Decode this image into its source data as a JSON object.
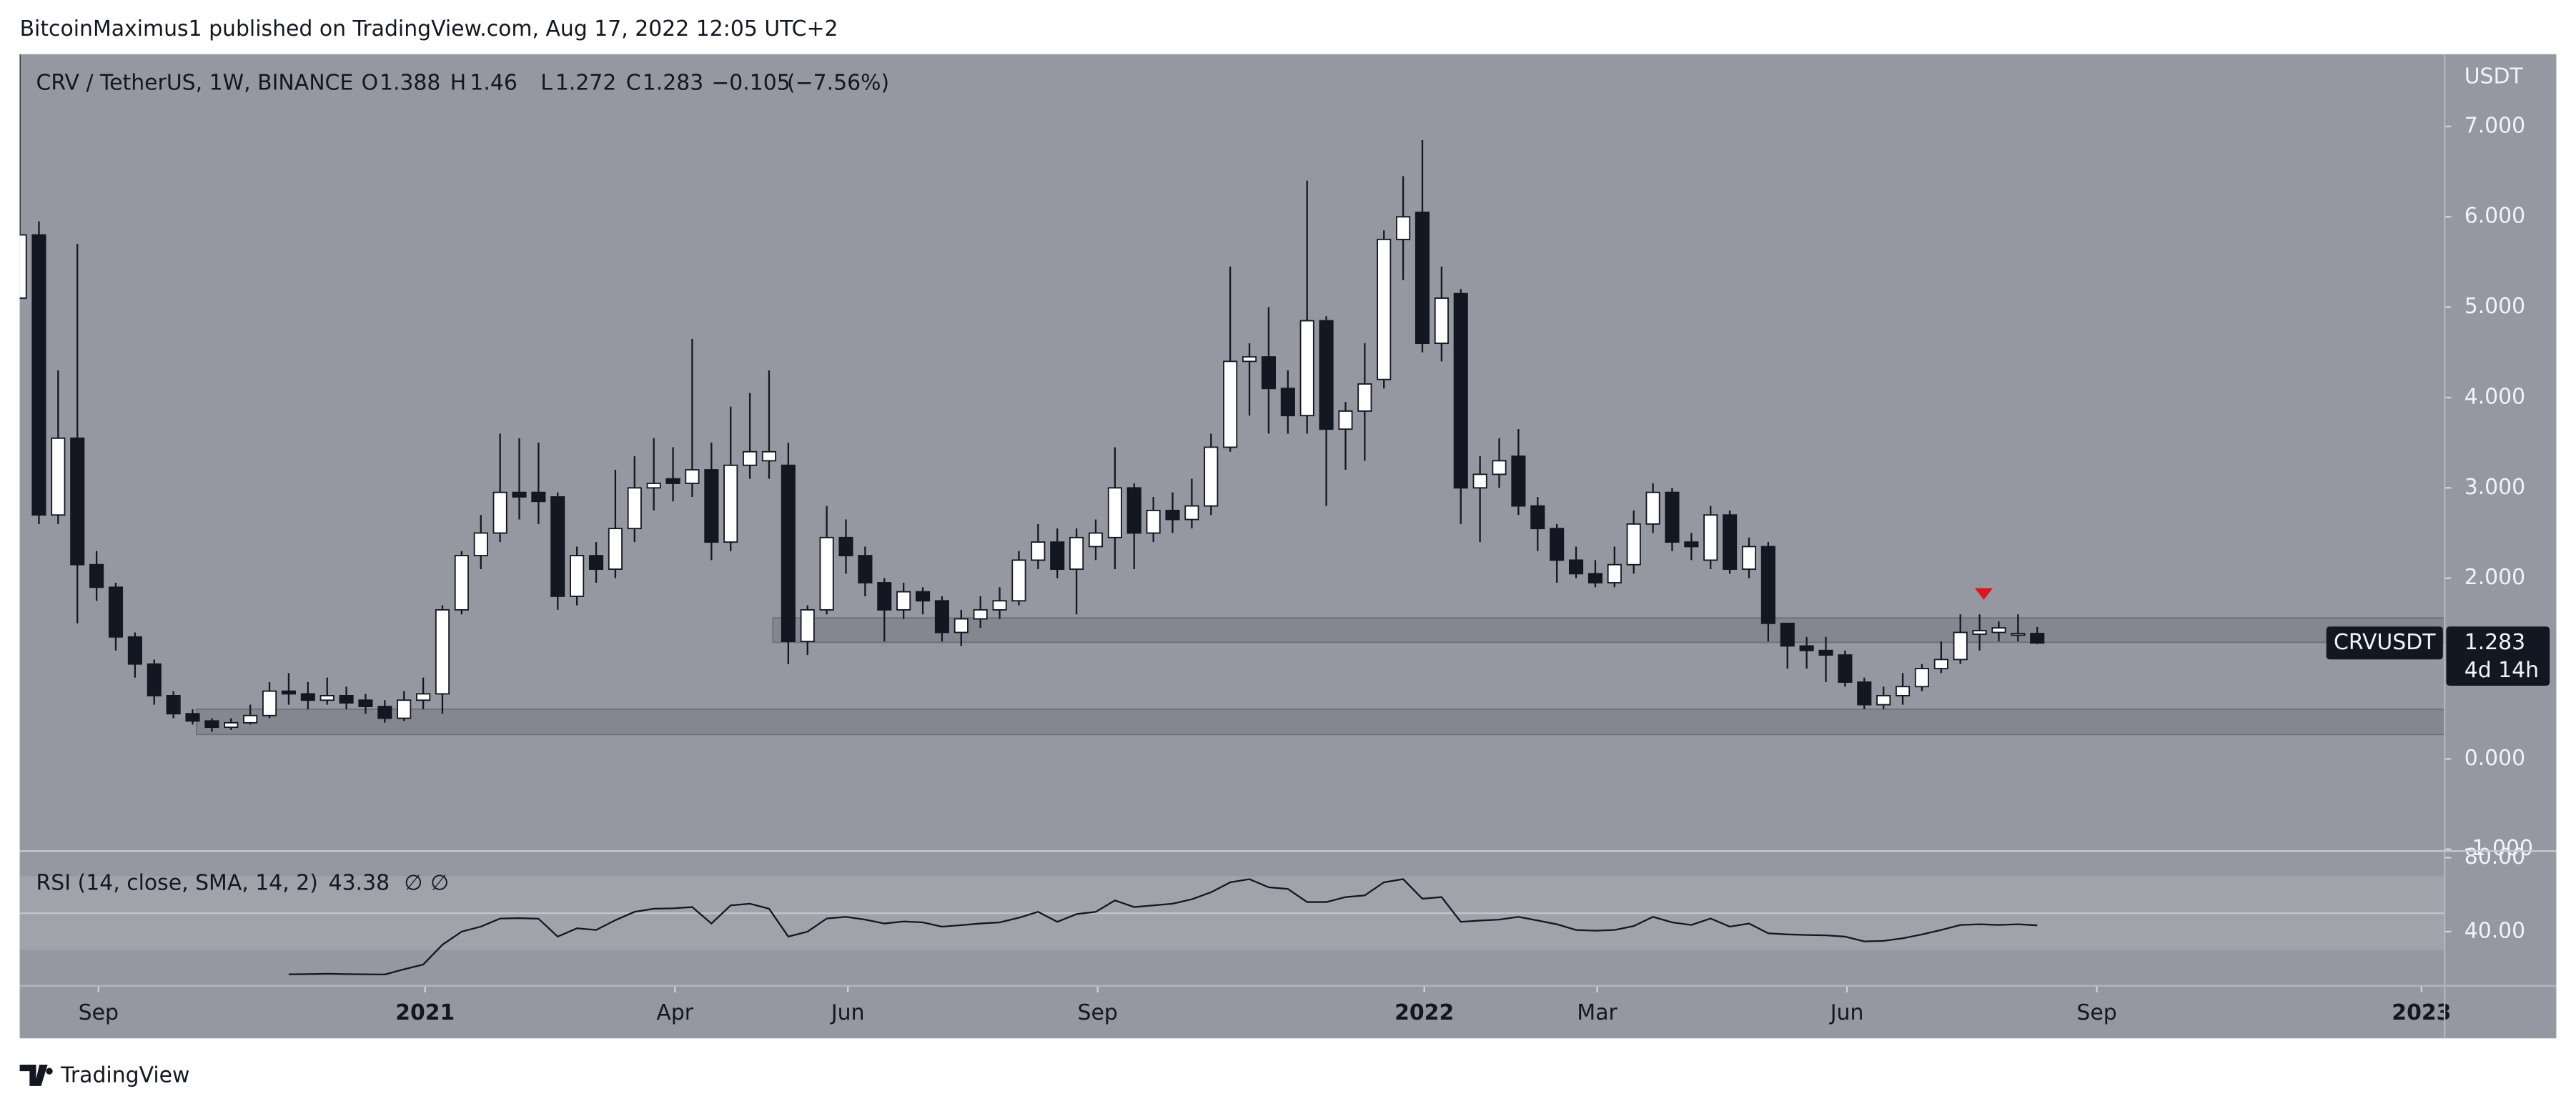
{
  "chart_data": {
    "type": "candlestick",
    "publisher_line": "BitcoinMaximus1 published on TradingView.com, Aug 17, 2022 12:05 UTC+2",
    "title": "CRV / TetherUS, 1W, BINANCE",
    "ohlc_labels": [
      "O",
      "H",
      "L",
      "C"
    ],
    "change": "−0.105",
    "change_pct": "(−7.56%)",
    "currency": "USDT",
    "ticker_tag": "CRVUSDT",
    "countdown": "4d 14h",
    "brand": "TradingView",
    "up_color": "#ffffff",
    "down_color": "#131722",
    "open": [
      5.1,
      5.8,
      2.7,
      3.55,
      2.15,
      1.9,
      1.35,
      1.05,
      0.7,
      0.5,
      0.42,
      0.35,
      0.4,
      0.48,
      0.75,
      0.72,
      0.65,
      0.7,
      0.65,
      0.58,
      0.45,
      0.65,
      0.72,
      1.65,
      2.25,
      2.5,
      2.95,
      2.95,
      2.9,
      1.8,
      2.25,
      2.1,
      2.55,
      3.0,
      3.1,
      3.05,
      3.2,
      2.4,
      3.25,
      3.3,
      3.25,
      1.3,
      1.65,
      2.45,
      2.25,
      1.95,
      1.65,
      1.85,
      1.75,
      1.4,
      1.55,
      1.65,
      1.75,
      2.2,
      2.4,
      2.1,
      2.35,
      2.45,
      3.0,
      2.5,
      2.75,
      2.65,
      2.8,
      3.45,
      4.4,
      4.45,
      4.1,
      3.8,
      4.85,
      3.65,
      3.85,
      4.2,
      5.75,
      6.05,
      4.6,
      5.15,
      3.0,
      3.15,
      3.35,
      2.8,
      2.55,
      2.2,
      2.05,
      1.95,
      2.15,
      2.6,
      2.95,
      2.4,
      2.2,
      2.7,
      2.1,
      2.35,
      1.5,
      1.25,
      1.2,
      1.15,
      0.85,
      0.6,
      0.7,
      0.8,
      1.0,
      1.1,
      1.38,
      1.4,
      1.38,
      1.388
    ],
    "high": [
      7.8,
      5.95,
      4.3,
      5.7,
      2.3,
      1.95,
      1.4,
      1.1,
      0.75,
      0.55,
      0.45,
      0.45,
      0.6,
      0.85,
      0.95,
      0.85,
      0.9,
      0.8,
      0.72,
      0.65,
      0.75,
      0.9,
      1.7,
      2.3,
      2.7,
      3.6,
      3.55,
      3.5,
      2.95,
      2.35,
      2.4,
      3.2,
      3.35,
      3.55,
      3.45,
      4.65,
      3.5,
      3.9,
      4.05,
      4.3,
      3.5,
      1.7,
      2.8,
      2.65,
      2.35,
      2.0,
      1.95,
      1.9,
      1.8,
      1.65,
      1.8,
      1.9,
      2.3,
      2.6,
      2.55,
      2.55,
      2.65,
      3.45,
      3.05,
      2.9,
      2.95,
      3.1,
      3.6,
      5.45,
      4.6,
      5.0,
      4.3,
      6.4,
      4.9,
      3.95,
      4.6,
      5.85,
      6.45,
      6.85,
      5.45,
      5.2,
      3.35,
      3.55,
      3.65,
      2.9,
      2.6,
      2.35,
      2.2,
      2.35,
      2.75,
      3.05,
      3.0,
      2.5,
      2.8,
      2.75,
      2.45,
      2.4,
      1.5,
      1.35,
      1.35,
      1.2,
      0.9,
      0.8,
      0.95,
      1.05,
      1.3,
      1.6,
      1.6,
      1.52,
      1.6,
      1.46
    ],
    "low": [
      5.1,
      2.6,
      2.6,
      1.5,
      1.75,
      1.2,
      0.9,
      0.6,
      0.45,
      0.38,
      0.3,
      0.32,
      0.38,
      0.45,
      0.6,
      0.55,
      0.6,
      0.55,
      0.5,
      0.4,
      0.42,
      0.55,
      0.5,
      1.6,
      2.1,
      2.4,
      2.65,
      2.6,
      1.65,
      1.7,
      1.95,
      2.0,
      2.4,
      2.75,
      2.85,
      2.9,
      2.2,
      2.3,
      3.1,
      3.1,
      1.05,
      1.15,
      1.6,
      2.05,
      1.8,
      1.3,
      1.55,
      1.6,
      1.3,
      1.25,
      1.45,
      1.55,
      1.7,
      2.1,
      2.0,
      1.6,
      2.2,
      2.1,
      2.1,
      2.4,
      2.5,
      2.55,
      2.7,
      3.4,
      3.8,
      3.6,
      3.6,
      3.6,
      2.8,
      3.2,
      3.3,
      4.1,
      5.3,
      4.5,
      4.4,
      2.6,
      2.4,
      3.0,
      2.7,
      2.3,
      1.95,
      2.0,
      1.9,
      1.9,
      2.05,
      2.5,
      2.3,
      2.2,
      2.1,
      2.05,
      2.0,
      1.3,
      1.0,
      1.0,
      0.85,
      0.8,
      0.55,
      0.55,
      0.6,
      0.75,
      0.95,
      1.05,
      1.2,
      1.3,
      1.3,
      1.272
    ],
    "close": [
      5.8,
      2.7,
      3.55,
      2.15,
      1.9,
      1.35,
      1.05,
      0.7,
      0.5,
      0.42,
      0.35,
      0.4,
      0.48,
      0.75,
      0.72,
      0.65,
      0.7,
      0.62,
      0.58,
      0.45,
      0.65,
      0.72,
      1.65,
      2.25,
      2.5,
      2.95,
      2.9,
      2.85,
      1.8,
      2.25,
      2.1,
      2.55,
      3.0,
      3.05,
      3.05,
      3.2,
      2.4,
      3.25,
      3.4,
      3.4,
      1.3,
      1.65,
      2.45,
      2.25,
      1.95,
      1.65,
      1.85,
      1.75,
      1.4,
      1.55,
      1.65,
      1.75,
      2.2,
      2.4,
      2.1,
      2.45,
      2.5,
      3.0,
      2.5,
      2.75,
      2.65,
      2.8,
      3.45,
      4.4,
      4.45,
      4.1,
      3.8,
      4.85,
      3.65,
      3.85,
      4.15,
      5.75,
      6.0,
      4.6,
      5.1,
      3.0,
      3.15,
      3.3,
      2.8,
      2.55,
      2.2,
      2.05,
      1.95,
      2.15,
      2.6,
      2.95,
      2.4,
      2.35,
      2.7,
      2.1,
      2.35,
      1.5,
      1.25,
      1.2,
      1.15,
      0.85,
      0.6,
      0.7,
      0.8,
      1.0,
      1.1,
      1.4,
      1.42,
      1.45,
      1.388,
      1.283
    ],
    "zones": [
      {
        "from": 9.2,
        "low": 0.27,
        "high": 0.55
      },
      {
        "from": 39.2,
        "low": 1.29,
        "high": 1.56
      }
    ],
    "xlim": [
      0,
      126.2
    ],
    "xticks": [
      {
        "value": 4.1,
        "label": "Sep"
      },
      {
        "value": 21.1,
        "label": "2021"
      },
      {
        "value": 34.1,
        "label": "Apr"
      },
      {
        "value": 43.1,
        "label": "Jun"
      },
      {
        "value": 56.1,
        "label": "Sep"
      },
      {
        "value": 73.1,
        "label": "2022"
      },
      {
        "value": 82.1,
        "label": "Mar"
      },
      {
        "value": 95.1,
        "label": "Jun"
      },
      {
        "value": 108.1,
        "label": "Sep"
      },
      {
        "value": 125.0,
        "label": "2023"
      }
    ],
    "ylim": [
      -1.02,
      7.8
    ],
    "yticks": [
      {
        "value": -1,
        "label": "-1.000"
      },
      {
        "value": 0,
        "label": "0.000"
      },
      {
        "value": 2,
        "label": "2.000"
      },
      {
        "value": 3,
        "label": "3.000"
      },
      {
        "value": 4,
        "label": "4.000"
      },
      {
        "value": 5,
        "label": "5.000"
      },
      {
        "value": 6,
        "label": "6.000"
      },
      {
        "value": 7,
        "label": "7.000"
      }
    ],
    "indicator": {
      "title": "RSI (14, close, SMA, 14, 2)",
      "extras": [
        "∅",
        "∅"
      ],
      "band": [
        30,
        70
      ],
      "ylim": [
        10.7,
        83.6
      ],
      "yticks": [
        {
          "value": 80,
          "label": "80.00"
        },
        {
          "value": 40,
          "label": "40.00"
        }
      ],
      "values": [
        null,
        null,
        null,
        null,
        null,
        null,
        null,
        null,
        null,
        null,
        null,
        null,
        null,
        null,
        16.9,
        17,
        17.2,
        17,
        16.9,
        16.8,
        19.6,
        22.2,
        32.9,
        40,
        42.7,
        47.1,
        47.3,
        47,
        37.3,
        41.8,
        40.9,
        46.2,
        50.7,
        52.4,
        52.6,
        53.3,
        44.4,
        54.2,
        55.1,
        52.4,
        37.3,
        40,
        47.1,
        48,
        46.5,
        44.4,
        45.5,
        45,
        42.7,
        43.5,
        44.4,
        45,
        47.5,
        50.7,
        45.3,
        49.5,
        50.7,
        56.9,
        53.3,
        54.2,
        55.1,
        57.5,
        61.3,
        66.7,
        68.4,
        64,
        63.1,
        56,
        56,
        58.7,
        59.6,
        66.7,
        68.4,
        57.8,
        58.7,
        45.3,
        46,
        46.5,
        48,
        46,
        44,
        40.9,
        40.5,
        40.9,
        43,
        48,
        45,
        43.6,
        47.1,
        42.7,
        44.4,
        39.1,
        38.5,
        38.2,
        38,
        37.3,
        34.7,
        35,
        36.4,
        38.5,
        40.9,
        43.6,
        44,
        43.6,
        44,
        43.38
      ]
    }
  }
}
